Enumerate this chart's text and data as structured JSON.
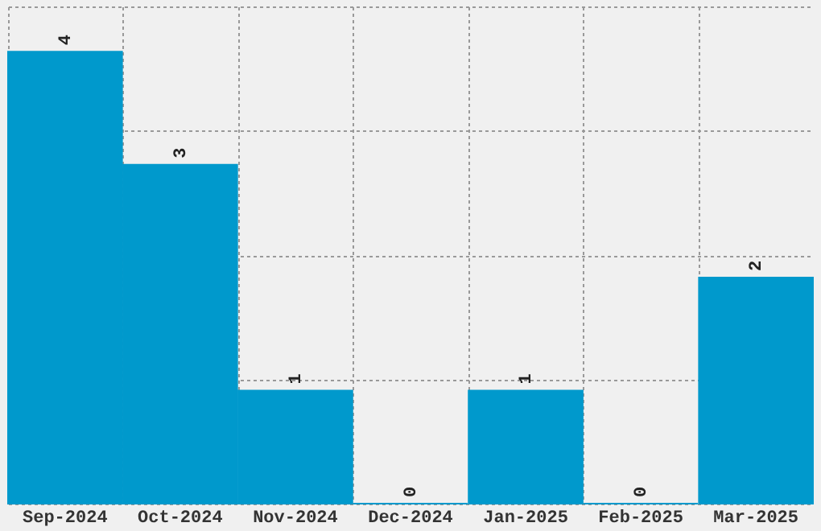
{
  "chart_data": {
    "type": "bar",
    "categories": [
      "Sep-2024",
      "Oct-2024",
      "Nov-2024",
      "Dec-2024",
      "Jan-2025",
      "Feb-2025",
      "Mar-2025"
    ],
    "values": [
      4,
      3,
      1,
      0,
      1,
      0,
      2
    ],
    "color": "#0099cc",
    "ylim": [
      0,
      4.4
    ],
    "yticks": [
      {
        "value": 0,
        "label": null
      },
      {
        "value": 1.1,
        "label": null
      },
      {
        "value": 2.2,
        "label": null
      },
      {
        "value": 3.3,
        "label": null
      },
      {
        "value": 4.4,
        "label": null
      }
    ],
    "tick_labels": "x",
    "grid": true,
    "data_labels": true
  }
}
